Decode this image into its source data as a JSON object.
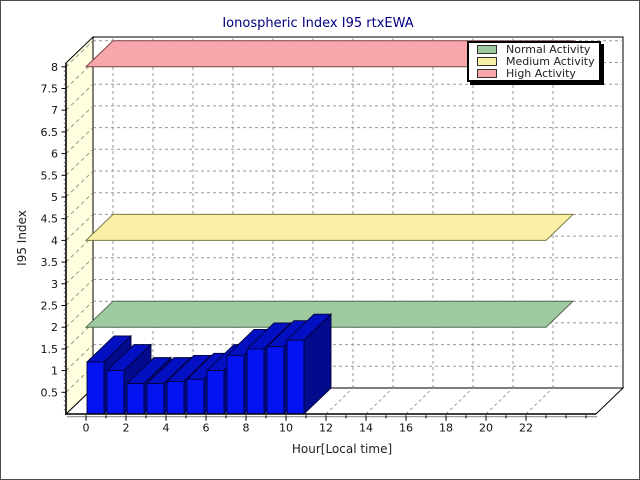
{
  "frame": {
    "border_color": "#4d4d4d",
    "background": "#ffffff"
  },
  "chart_data": {
    "type": "bar",
    "projection": "3d",
    "title": "Ionospheric Index I95 rtxEWA",
    "title_color": "#000080",
    "xlabel": "Hour[Local time]",
    "ylabel": "I95 Index",
    "hours": [
      0,
      1,
      2,
      3,
      4,
      5,
      6,
      7,
      8,
      9,
      10
    ],
    "values": [
      1.2,
      1.0,
      0.7,
      0.7,
      0.75,
      0.8,
      1.0,
      1.35,
      1.5,
      1.55,
      1.7
    ],
    "bar_colors": {
      "front": "#0414f0",
      "top": "#0310c2",
      "side": "#020b8c",
      "edge": "#01013b"
    },
    "xticks": [
      0,
      2,
      4,
      6,
      8,
      10,
      12,
      14,
      16,
      18,
      20,
      22
    ],
    "yticks": [
      0.5,
      1,
      1.5,
      2,
      2.5,
      3,
      3.5,
      4,
      4.5,
      5,
      5.5,
      6,
      6.5,
      7,
      7.5,
      8
    ],
    "xlim": [
      -1,
      25.5
    ],
    "ylim": [
      0,
      8.08
    ],
    "grid": "dashed-gray",
    "left_wall_color": "#ffffe0",
    "wall_hatch_color": "#9a9a8e",
    "grid_color": "#999999",
    "tick_label_color": "#111111",
    "bands": [
      {
        "label": "Normal Activity",
        "value": 2,
        "fill": "#9fc99f",
        "edge": "#4f6a4f"
      },
      {
        "label": "Medium Activity",
        "value": 4,
        "fill": "#f9f0a6",
        "edge": "#7f7a42"
      },
      {
        "label": "High Activity",
        "value": 8,
        "fill": "#f7a6ab",
        "edge": "#7c4449"
      }
    ],
    "band_hour_range": [
      0,
      23
    ],
    "legend": {
      "position": "top-right",
      "entries": [
        "Normal Activity",
        "Medium Activity",
        "High Activity"
      ]
    }
  }
}
